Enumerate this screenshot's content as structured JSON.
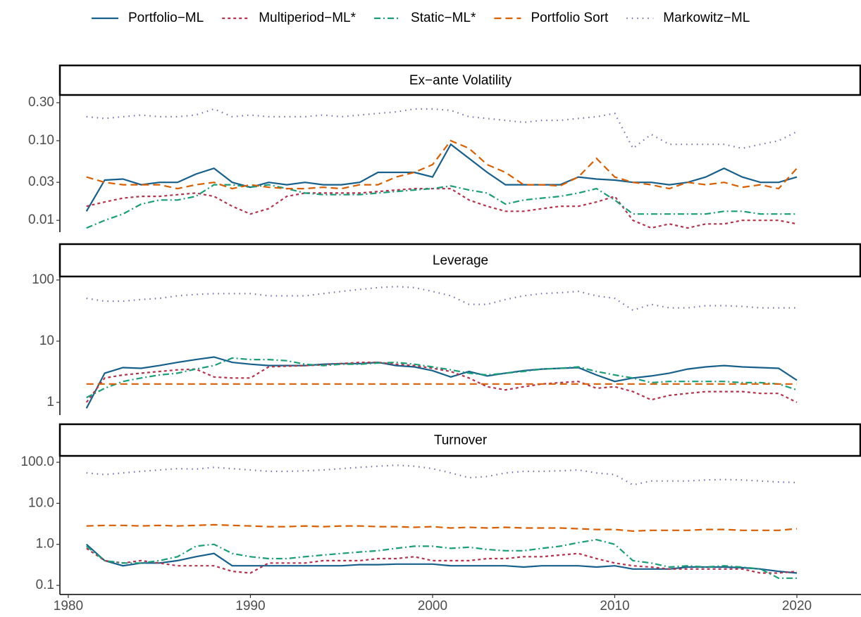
{
  "chart_data": [
    {
      "type": "line",
      "title": "Ex−ante Volatility",
      "log_y": true,
      "x": [
        1981,
        1982,
        1983,
        1984,
        1985,
        1986,
        1987,
        1988,
        1989,
        1990,
        1991,
        1992,
        1993,
        1994,
        1995,
        1996,
        1997,
        1998,
        1999,
        2000,
        2001,
        2002,
        2003,
        2004,
        2005,
        2006,
        2007,
        2008,
        2009,
        2010,
        2011,
        2012,
        2013,
        2014,
        2015,
        2016,
        2017,
        2018,
        2019,
        2020
      ],
      "xlim": [
        1979.54,
        2023.52
      ],
      "ylim": [
        0.0071,
        0.375
      ],
      "yticks": [
        0.01,
        0.03,
        {
          "value": 0.1,
          "label": "0.10"
        },
        {
          "value": 0.3,
          "label": "0.30"
        }
      ],
      "series": [
        {
          "name": "Portfolio−ML",
          "color": "#17608b",
          "dash": "solid",
          "values": [
            0.013,
            0.032,
            0.033,
            0.028,
            0.03,
            0.03,
            0.038,
            0.045,
            0.03,
            0.026,
            0.03,
            0.028,
            0.03,
            0.028,
            0.028,
            0.03,
            0.04,
            0.04,
            0.04,
            0.035,
            0.09,
            0.06,
            0.04,
            0.028,
            0.028,
            0.028,
            0.028,
            0.035,
            0.033,
            0.032,
            0.03,
            0.03,
            0.028,
            0.03,
            0.035,
            0.045,
            0.035,
            0.03,
            0.03,
            0.035
          ]
        },
        {
          "name": "Multiperiod−ML*",
          "color": "#b5334d",
          "dash": "dotted",
          "values": [
            0.015,
            0.017,
            0.019,
            0.02,
            0.02,
            0.021,
            0.022,
            0.02,
            0.015,
            0.012,
            0.014,
            0.02,
            0.022,
            0.022,
            0.022,
            0.022,
            0.023,
            0.024,
            0.025,
            0.025,
            0.025,
            0.018,
            0.015,
            0.013,
            0.013,
            0.014,
            0.015,
            0.015,
            0.017,
            0.02,
            0.01,
            0.008,
            0.009,
            0.008,
            0.009,
            0.009,
            0.01,
            0.01,
            0.01,
            0.009
          ]
        },
        {
          "name": "Static−ML*",
          "color": "#1b9e77",
          "dash": "dotdash",
          "values": [
            0.008,
            0.01,
            0.012,
            0.016,
            0.018,
            0.018,
            0.02,
            0.028,
            0.028,
            0.026,
            0.028,
            0.025,
            0.022,
            0.021,
            0.021,
            0.021,
            0.022,
            0.023,
            0.024,
            0.025,
            0.027,
            0.024,
            0.022,
            0.016,
            0.018,
            0.019,
            0.02,
            0.022,
            0.025,
            0.018,
            0.012,
            0.012,
            0.012,
            0.012,
            0.012,
            0.013,
            0.013,
            0.012,
            0.012,
            0.012
          ]
        },
        {
          "name": "Portfolio Sort",
          "color": "#d95f02",
          "dash": "dashed",
          "values": [
            0.035,
            0.03,
            0.028,
            0.028,
            0.028,
            0.025,
            0.028,
            0.03,
            0.025,
            0.028,
            0.026,
            0.025,
            0.025,
            0.026,
            0.025,
            0.028,
            0.028,
            0.035,
            0.04,
            0.05,
            0.1,
            0.08,
            0.05,
            0.04,
            0.028,
            0.028,
            0.027,
            0.035,
            0.06,
            0.035,
            0.03,
            0.028,
            0.025,
            0.03,
            0.028,
            0.03,
            0.026,
            0.028,
            0.025,
            0.045
          ]
        },
        {
          "name": "Markowitz−ML",
          "color": "#7570b3",
          "dash": "dot",
          "values": [
            0.2,
            0.19,
            0.2,
            0.21,
            0.2,
            0.2,
            0.21,
            0.25,
            0.2,
            0.21,
            0.2,
            0.2,
            0.2,
            0.21,
            0.2,
            0.21,
            0.22,
            0.23,
            0.25,
            0.25,
            0.24,
            0.2,
            0.19,
            0.18,
            0.17,
            0.18,
            0.18,
            0.19,
            0.2,
            0.22,
            0.08,
            0.12,
            0.09,
            0.09,
            0.09,
            0.09,
            0.08,
            0.09,
            0.1,
            0.13
          ]
        }
      ]
    },
    {
      "type": "line",
      "title": "Leverage",
      "log_y": true,
      "x": [
        1981,
        1982,
        1983,
        1984,
        1985,
        1986,
        1987,
        1988,
        1989,
        1990,
        1991,
        1992,
        1993,
        1994,
        1995,
        1996,
        1997,
        1998,
        1999,
        2000,
        2001,
        2002,
        2003,
        2004,
        2005,
        2006,
        2007,
        2008,
        2009,
        2010,
        2011,
        2012,
        2013,
        2014,
        2015,
        2016,
        2017,
        2018,
        2019,
        2020
      ],
      "xlim": [
        1979.54,
        2023.52
      ],
      "ylim": [
        0.62,
        114
      ],
      "yticks": [
        1,
        10,
        100
      ],
      "series": [
        {
          "color": "#17608b",
          "dash": "solid",
          "values": [
            0.8,
            3,
            3.7,
            3.6,
            4,
            4.5,
            5,
            5.5,
            4.5,
            4.2,
            4,
            4,
            4,
            4.2,
            4.3,
            4.3,
            4.5,
            4,
            3.8,
            3.3,
            2.6,
            3.2,
            2.7,
            3,
            3.3,
            3.5,
            3.6,
            3.7,
            2.8,
            2.2,
            2.5,
            2.7,
            3,
            3.5,
            3.8,
            4,
            3.8,
            3.7,
            3.6,
            2.3
          ]
        },
        {
          "color": "#b5334d",
          "dash": "dotted",
          "values": [
            1,
            2.5,
            2.8,
            3,
            3.2,
            3.4,
            3.5,
            2.6,
            2.5,
            2.5,
            3.8,
            3.9,
            4,
            4.1,
            4.3,
            4.5,
            4.5,
            4.2,
            4,
            3.6,
            3.2,
            2.5,
            1.8,
            1.6,
            1.8,
            2,
            2.1,
            2.2,
            1.7,
            1.8,
            1.5,
            1.1,
            1.3,
            1.4,
            1.5,
            1.5,
            1.5,
            1.4,
            1.4,
            1.0
          ]
        },
        {
          "color": "#1b9e77",
          "dash": "dotdash",
          "values": [
            1.2,
            1.7,
            2.2,
            2.5,
            2.8,
            3,
            3.5,
            4,
            5.3,
            5,
            5,
            4.8,
            4.2,
            4,
            4.2,
            4.2,
            4.4,
            4.5,
            4.2,
            3.8,
            3.4,
            3,
            2.8,
            3,
            3.2,
            3.5,
            3.6,
            3.8,
            3.2,
            2.8,
            2.5,
            2.1,
            2.2,
            2.2,
            2.2,
            2.2,
            2.1,
            2.1,
            2,
            1.6
          ]
        },
        {
          "color": "#d95f02",
          "dash": "dashed",
          "values": [
            2,
            2,
            2,
            2,
            2,
            2,
            2,
            2,
            2,
            2,
            2,
            2,
            2,
            2,
            2,
            2,
            2,
            2,
            2,
            2,
            2,
            2,
            2,
            2,
            2,
            2,
            2,
            2,
            2,
            2,
            2,
            2,
            2,
            2,
            2,
            2,
            2,
            2,
            2,
            2
          ]
        },
        {
          "color": "#7570b3",
          "dash": "dot",
          "values": [
            50,
            45,
            45,
            48,
            50,
            55,
            58,
            60,
            60,
            60,
            55,
            55,
            55,
            60,
            65,
            70,
            75,
            78,
            75,
            65,
            55,
            40,
            40,
            48,
            55,
            60,
            62,
            65,
            55,
            50,
            32,
            40,
            35,
            35,
            38,
            38,
            37,
            35,
            35,
            35
          ]
        }
      ]
    },
    {
      "type": "line",
      "title": "Turnover",
      "log_y": true,
      "x": [
        1981,
        1982,
        1983,
        1984,
        1985,
        1986,
        1987,
        1988,
        1989,
        1990,
        1991,
        1992,
        1993,
        1994,
        1995,
        1996,
        1997,
        1998,
        1999,
        2000,
        2001,
        2002,
        2003,
        2004,
        2005,
        2006,
        2007,
        2008,
        2009,
        2010,
        2011,
        2012,
        2013,
        2014,
        2015,
        2016,
        2017,
        2018,
        2019,
        2020
      ],
      "xlim": [
        1979.54,
        2023.52
      ],
      "xticks": [
        1980,
        1990,
        2000,
        2010,
        2020
      ],
      "ylim": [
        0.06,
        143
      ],
      "yticks": [
        {
          "value": 0.1,
          "label": "0.1"
        },
        {
          "value": 1,
          "label": "1.0"
        },
        {
          "value": 10,
          "label": "10.0"
        },
        {
          "value": 100,
          "label": "100.0"
        }
      ],
      "series": [
        {
          "color": "#17608b",
          "dash": "solid",
          "values": [
            1,
            0.4,
            0.3,
            0.35,
            0.35,
            0.4,
            0.5,
            0.6,
            0.3,
            0.3,
            0.3,
            0.3,
            0.3,
            0.3,
            0.3,
            0.32,
            0.32,
            0.33,
            0.33,
            0.33,
            0.3,
            0.3,
            0.3,
            0.3,
            0.28,
            0.3,
            0.3,
            0.3,
            0.28,
            0.3,
            0.25,
            0.25,
            0.25,
            0.28,
            0.28,
            0.28,
            0.27,
            0.25,
            0.22,
            0.2
          ]
        },
        {
          "color": "#b5334d",
          "dash": "dotted",
          "values": [
            0.8,
            0.4,
            0.35,
            0.4,
            0.35,
            0.3,
            0.3,
            0.3,
            0.22,
            0.2,
            0.35,
            0.35,
            0.35,
            0.4,
            0.4,
            0.4,
            0.45,
            0.45,
            0.5,
            0.4,
            0.4,
            0.4,
            0.45,
            0.45,
            0.5,
            0.5,
            0.55,
            0.6,
            0.45,
            0.35,
            0.3,
            0.28,
            0.25,
            0.25,
            0.25,
            0.25,
            0.25,
            0.2,
            0.2,
            0.22
          ]
        },
        {
          "color": "#1b9e77",
          "dash": "dotdash",
          "values": [
            0.9,
            0.4,
            0.35,
            0.35,
            0.4,
            0.5,
            0.9,
            1.0,
            0.6,
            0.5,
            0.45,
            0.45,
            0.5,
            0.55,
            0.6,
            0.65,
            0.7,
            0.8,
            0.9,
            0.9,
            0.8,
            0.85,
            0.75,
            0.7,
            0.7,
            0.8,
            0.9,
            1.1,
            1.3,
            1.0,
            0.4,
            0.35,
            0.28,
            0.3,
            0.28,
            0.3,
            0.28,
            0.25,
            0.15,
            0.15
          ]
        },
        {
          "color": "#d95f02",
          "dash": "dashed",
          "values": [
            2.8,
            2.9,
            2.9,
            2.8,
            2.9,
            2.8,
            2.9,
            3,
            2.9,
            2.8,
            2.7,
            2.7,
            2.8,
            2.7,
            2.8,
            2.8,
            2.7,
            2.7,
            2.6,
            2.7,
            2.5,
            2.6,
            2.5,
            2.6,
            2.5,
            2.5,
            2.5,
            2.4,
            2.3,
            2.3,
            2.1,
            2.2,
            2.2,
            2.2,
            2.3,
            2.3,
            2.2,
            2.2,
            2.2,
            2.4
          ]
        },
        {
          "color": "#7570b3",
          "dash": "dot",
          "values": [
            55,
            50,
            55,
            60,
            65,
            70,
            68,
            75,
            70,
            65,
            60,
            60,
            62,
            65,
            70,
            75,
            80,
            85,
            80,
            70,
            55,
            42,
            45,
            55,
            60,
            60,
            62,
            65,
            55,
            50,
            28,
            35,
            35,
            35,
            37,
            38,
            37,
            35,
            33,
            32
          ]
        }
      ]
    }
  ]
}
